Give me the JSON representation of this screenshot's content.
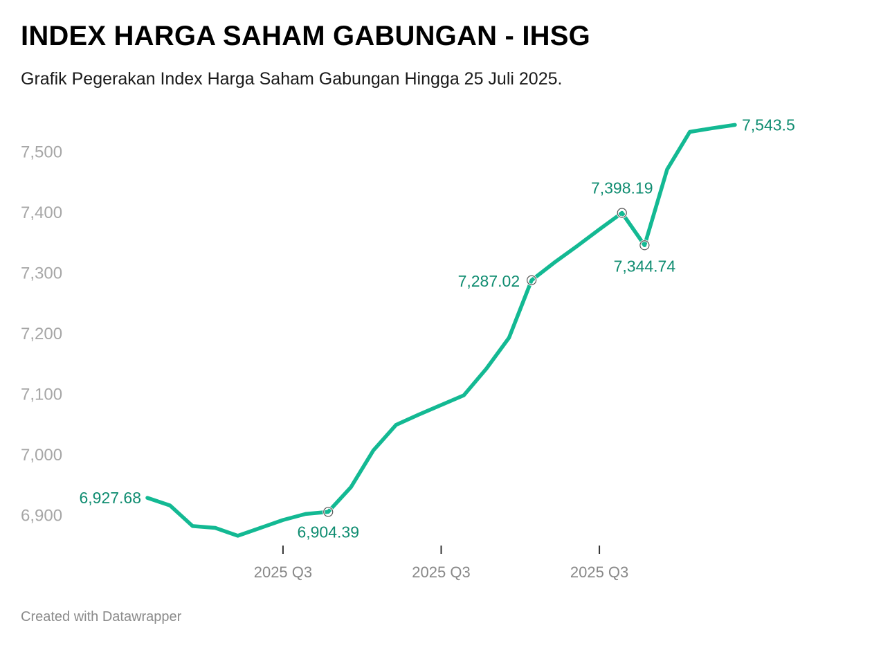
{
  "header": {
    "title": "INDEX HARGA SAHAM GABUNGAN - IHSG",
    "subtitle": "Grafik Pegerakan Index Harga Saham Gabungan Hingga 25 Juli 2025."
  },
  "footer": {
    "credit": "Created with Datawrapper"
  },
  "colors": {
    "line": "#13b993",
    "label": "#0e8c70",
    "axis_text": "#a6a6a6",
    "tick": "#333333"
  },
  "chart_data": {
    "type": "line",
    "title": "INDEX HARGA SAHAM GABUNGAN - IHSG",
    "subtitle": "Grafik Pegerakan Index Harga Saham Gabungan Hingga 25 Juli 2025.",
    "xlabel": "",
    "ylabel": "",
    "ylim": [
      6850,
      7560
    ],
    "yticks": [
      6900,
      7000,
      7100,
      7200,
      7300,
      7400,
      7500
    ],
    "ytick_labels": [
      "6,900",
      "7,000",
      "7,100",
      "7,200",
      "7,300",
      "7,400",
      "7,500"
    ],
    "x_count": 27,
    "xticks": [
      6,
      13,
      20
    ],
    "xtick_labels": [
      "2025 Q3",
      "2025 Q3",
      "2025 Q3"
    ],
    "grid": false,
    "values": [
      6927.68,
      6915,
      6881,
      6878,
      6865,
      6878,
      6891,
      6901,
      6904.39,
      6945,
      7006,
      7048,
      7065,
      7081,
      7097,
      7141,
      7192,
      7287.02,
      7316,
      7343,
      7371,
      7398.19,
      7344.74,
      7470,
      7532,
      7538,
      7543.5
    ],
    "annotations": [
      {
        "index": 0,
        "text": "6,927.68",
        "marker": false
      },
      {
        "index": 8,
        "text": "6,904.39",
        "marker": true
      },
      {
        "index": 17,
        "text": "7,287.02",
        "marker": true
      },
      {
        "index": 21,
        "text": "7,398.19",
        "marker": true
      },
      {
        "index": 22,
        "text": "7,344.74",
        "marker": true
      },
      {
        "index": 26,
        "text": "7,543.5",
        "marker": false
      }
    ]
  }
}
